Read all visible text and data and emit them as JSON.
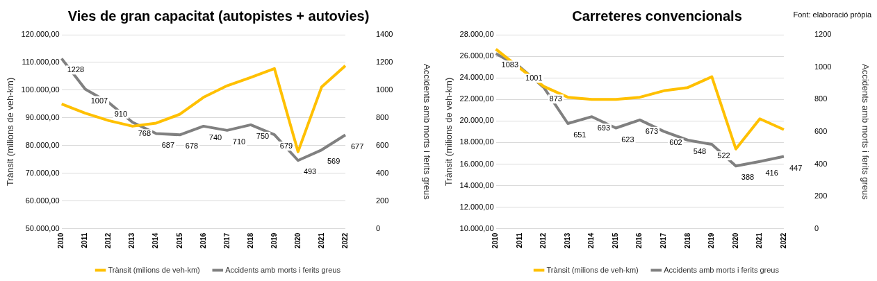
{
  "chart_data": [
    {
      "type": "line",
      "title": "Vies de gran capacitat (autopistes + autovies)",
      "ylabel": "Trànsit (milions de veh-km)",
      "y2label": "Accidents amb morts i ferits greus",
      "categories": [
        "2010",
        "2011",
        "2012",
        "2013",
        "2014",
        "2015",
        "2016",
        "2017",
        "2018",
        "2019",
        "2020",
        "2021",
        "2022"
      ],
      "series": [
        {
          "name": "Trànsit (milions de veh-km)",
          "color": "#ffc000",
          "values": [
            95000,
            91700,
            89000,
            87000,
            88100,
            91300,
            97400,
            101600,
            104600,
            107800,
            77800,
            101200,
            108800
          ]
        },
        {
          "name": "Accidents amb morts i ferits greus",
          "color": "#808080",
          "axis": "y2",
          "values": [
            1228,
            1007,
            910,
            768,
            687,
            678,
            740,
            710,
            750,
            679,
            493,
            569,
            677
          ],
          "value_labels": [
            "1228",
            "1007",
            "910",
            "768",
            "687",
            "678",
            "740",
            "710",
            "750",
            "679",
            "493",
            "569",
            "677"
          ]
        }
      ],
      "ylim": [
        50000,
        120000
      ],
      "yticks": [
        {
          "value": 50000,
          "label": "50.000,00"
        },
        {
          "value": 60000,
          "label": "60.000,00"
        },
        {
          "value": 70000,
          "label": "70.000,00"
        },
        {
          "value": 80000,
          "label": "80.000,00"
        },
        {
          "value": 90000,
          "label": "90.000,00"
        },
        {
          "value": 100000,
          "label": "100.000,00"
        },
        {
          "value": 110000,
          "label": "110.000,00"
        },
        {
          "value": 120000,
          "label": "120.000,00"
        }
      ],
      "y2lim": [
        0,
        1400
      ],
      "y2ticks": [
        0,
        200,
        400,
        600,
        800,
        1000,
        1200,
        1400
      ],
      "grid": "y",
      "legend": "bottom",
      "marker": "none"
    },
    {
      "type": "line",
      "title": "Carreteres convencionals",
      "ylabel": "Trànsit (milions de veh-km)",
      "y2label": "Accidents amb morts i ferits greus",
      "categories": [
        "2010",
        "2011",
        "2012",
        "2013",
        "2014",
        "2015",
        "2016",
        "2017",
        "2018",
        "2019",
        "2020",
        "2021",
        "2022"
      ],
      "series": [
        {
          "name": "Trànsit (milions de veh-km)",
          "color": "#ffc000",
          "values": [
            26660,
            24900,
            23200,
            22200,
            22000,
            22000,
            22200,
            22800,
            23100,
            24100,
            17400,
            20200,
            19200
          ]
        },
        {
          "name": "Accidents amb morts i ferits greus",
          "color": "#808080",
          "axis": "y2",
          "values": [
            1083,
            1001,
            873,
            651,
            693,
            623,
            673,
            602,
            548,
            522,
            388,
            416,
            447
          ],
          "value_labels": [
            "1083",
            "1001",
            "873",
            "651",
            "693",
            "623",
            "673",
            "602",
            "548",
            "522",
            "388",
            "416",
            "447"
          ]
        }
      ],
      "ylim": [
        10000,
        28000
      ],
      "yticks": [
        {
          "value": 10000,
          "label": "10.000,00"
        },
        {
          "value": 12000,
          "label": "12.000,00"
        },
        {
          "value": 14000,
          "label": "14.000,00"
        },
        {
          "value": 16000,
          "label": "16.000,00"
        },
        {
          "value": 18000,
          "label": "18.000,00"
        },
        {
          "value": 20000,
          "label": "20.000,00"
        },
        {
          "value": 22000,
          "label": "22.000,00"
        },
        {
          "value": 24000,
          "label": "24.000,00"
        },
        {
          "value": 26000,
          "label": "26.000,00"
        },
        {
          "value": 28000,
          "label": "28.000,00"
        }
      ],
      "y2lim": [
        0,
        1200
      ],
      "y2ticks": [
        0,
        200,
        400,
        600,
        800,
        1000,
        1200
      ],
      "grid": "y",
      "legend": "bottom",
      "marker": "none",
      "annotations": [
        "Font: elaboració pròpia"
      ]
    }
  ]
}
